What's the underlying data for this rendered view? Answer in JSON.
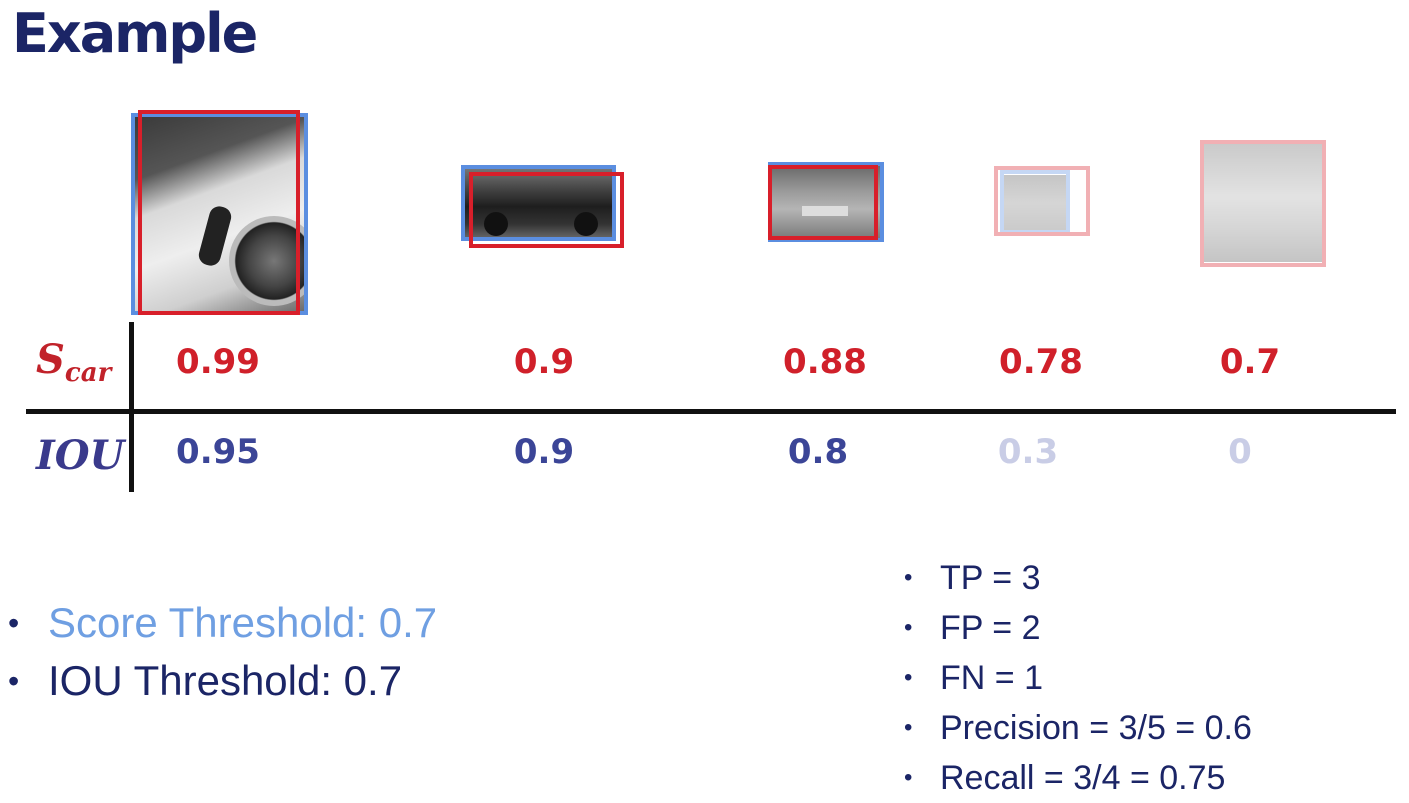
{
  "title": "Example",
  "detections": [
    {
      "score": "0.99",
      "iou": "0.95"
    },
    {
      "score": "0.9",
      "iou": "0.9"
    },
    {
      "score": "0.88",
      "iou": "0.8"
    },
    {
      "score": "0.78",
      "iou": "0.3"
    },
    {
      "score": "0.7",
      "iou": "0"
    }
  ],
  "table": {
    "score_label_main": "S",
    "score_label_sub": "car",
    "iou_label": "IOU"
  },
  "thresholds": {
    "score": "Score Threshold: 0.7",
    "iou": "IOU Threshold: 0.7"
  },
  "metrics": [
    "TP = 3",
    "FP = 2",
    "FN = 1",
    "Precision = 3/5 = 0.6",
    "Recall = 3/4 = 0.75"
  ],
  "colors": {
    "ground_truth_box": "#5b8ee0",
    "prediction_box": "#d81f2a",
    "title": "#1b2566",
    "score_text": "#d0202a",
    "iou_text": "#3b4597"
  }
}
